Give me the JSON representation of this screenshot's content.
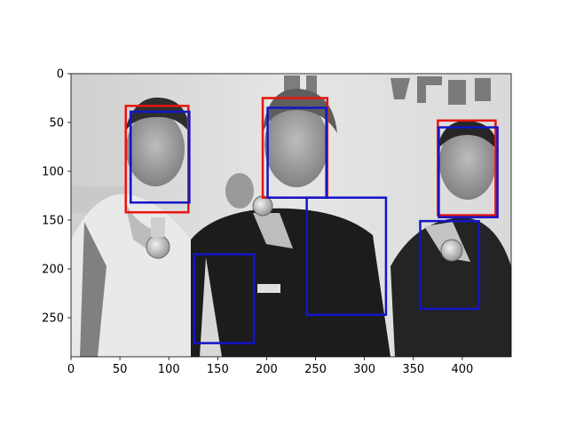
{
  "chart_data": {
    "type": "image",
    "image_extent": {
      "width": 450,
      "height": 290
    },
    "xlim": [
      0,
      450
    ],
    "ylim": [
      290,
      0
    ],
    "xticks": [
      0,
      50,
      100,
      150,
      200,
      250,
      300,
      350,
      400
    ],
    "yticks": [
      0,
      50,
      100,
      150,
      200,
      250
    ],
    "box_colors": {
      "red": "#e8150f",
      "blue": "#1414c8"
    },
    "boxes": [
      {
        "color": "red",
        "x0": 56,
        "y0": 33,
        "x1": 120,
        "y1": 142
      },
      {
        "color": "blue",
        "x0": 61,
        "y0": 39,
        "x1": 121,
        "y1": 132
      },
      {
        "color": "red",
        "x0": 196,
        "y0": 25,
        "x1": 262,
        "y1": 127
      },
      {
        "color": "blue",
        "x0": 201,
        "y0": 35,
        "x1": 261,
        "y1": 127
      },
      {
        "color": "red",
        "x0": 375,
        "y0": 48,
        "x1": 434,
        "y1": 145
      },
      {
        "color": "blue",
        "x0": 376,
        "y0": 55,
        "x1": 436,
        "y1": 147
      },
      {
        "color": "blue",
        "x0": 126,
        "y0": 185,
        "x1": 187,
        "y1": 276
      },
      {
        "color": "blue",
        "x0": 241,
        "y0": 127,
        "x1": 322,
        "y1": 247
      },
      {
        "color": "blue",
        "x0": 357,
        "y0": 151,
        "x1": 417,
        "y1": 241
      }
    ]
  }
}
